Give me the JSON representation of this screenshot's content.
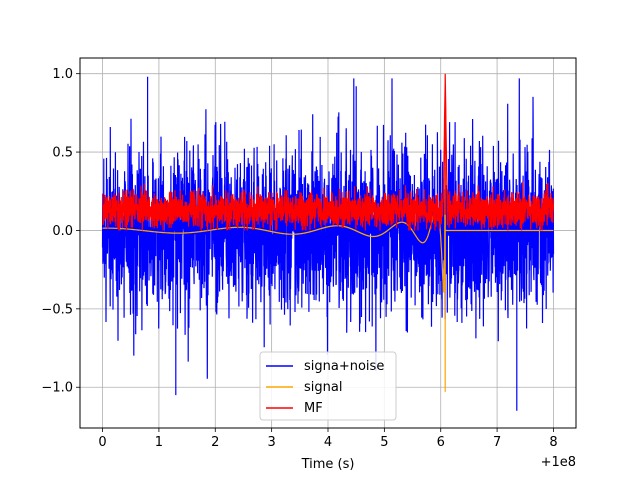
{
  "chart_data": {
    "type": "line",
    "title": "",
    "xlabel": "Time (s)",
    "ylabel": "",
    "x_offset_label": "+1e8",
    "xlim": [
      -0.4,
      8.4
    ],
    "ylim": [
      -1.26,
      1.1
    ],
    "xticks": [
      0,
      1,
      2,
      3,
      4,
      5,
      6,
      7,
      8
    ],
    "xtick_labels": [
      "0",
      "1",
      "2",
      "3",
      "4",
      "5",
      "6",
      "7",
      "8"
    ],
    "yticks": [
      -1.0,
      -0.5,
      0.0,
      0.5,
      1.0
    ],
    "ytick_labels": [
      "−1.0",
      "−0.5",
      "0.0",
      "0.5",
      "1.0"
    ],
    "grid": true,
    "legend_position": "bottom-center",
    "series": [
      {
        "name": "signa+noise",
        "color": "#0000ff",
        "description": "dense noise spanning 0 to 8, mostly between -0.55 and 0.55 with spikes to about +0.98 and -1.15",
        "x_range": [
          0,
          8
        ],
        "typical_range": [
          -0.55,
          0.55
        ],
        "peaks": [
          [
            0.98,
            0.8
          ],
          [
            -1.15,
            7.35
          ],
          [
            -1.05,
            1.3
          ],
          [
            0.92,
            4.5
          ]
        ]
      },
      {
        "name": "signal",
        "color": "#ffa500",
        "description": "chirp oscillation growing in frequency and amplitude, ending at about x=6.08",
        "x_range": [
          0,
          6.08
        ],
        "end_value": [
          -1.03,
          1.0
        ]
      },
      {
        "name": "MF",
        "color": "#ff0000",
        "description": "matched filter output, noise mostly between 0 and 0.3, sharp peak of 1.0 at x=6.08",
        "x_range": [
          0,
          8
        ],
        "typical_range": [
          0.0,
          0.3
        ],
        "peak": {
          "x": 6.08,
          "y": 1.0
        }
      }
    ]
  }
}
